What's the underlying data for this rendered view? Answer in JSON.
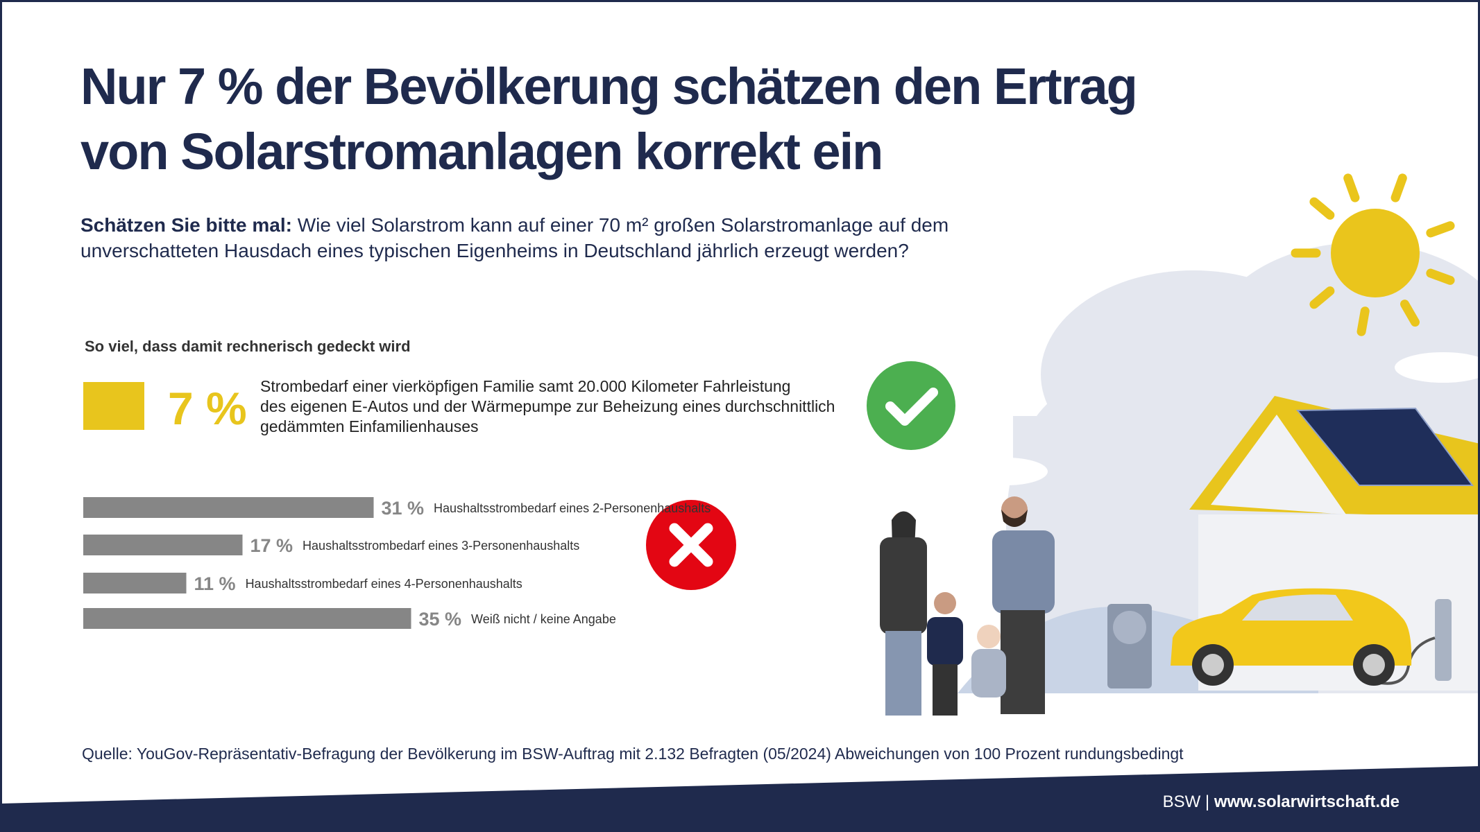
{
  "title": [
    "Nur 7 % der Bevölkerung schätzen den Ertrag",
    "von Solarstromanlagen korrekt ein"
  ],
  "question_lead": "Schätzen Sie bitte mal:",
  "question": [
    "Wie viel Solarstrom kann auf einer 70 m² großen Solarstromanlage auf dem",
    "unverschatteten Hausdach eines typischen Eigenheims in Deutschland jährlich erzeugt werden?"
  ],
  "chart_data": {
    "type": "bar",
    "section_label": "So viel, dass damit rechnerisch gedeckt wird",
    "highlight": {
      "value": 7,
      "value_label": "7 %",
      "color": "#e8c51d",
      "text": [
        "Strombedarf einer vierköpfigen Familie samt 20.000 Kilometer Fahrleistung",
        "des eigenen E-Autos und der Wärmepumpe zur Beheizung eines durchschnittlich",
        "gedämmten Einfamilienhauses"
      ]
    },
    "categories": [
      "Haushaltsstrombedarf eines 2-Personenhaushalts",
      "Haushaltsstrombedarf eines 3-Personenhaushalts",
      "Haushaltsstrombedarf eines 4-Personenhaushalts",
      "Weiß nicht / keine Angabe"
    ],
    "values": [
      31,
      17,
      11,
      35
    ],
    "value_labels": [
      "31 %",
      "17 %",
      "11 %",
      "35 %"
    ],
    "color": "#868686"
  },
  "source": "Quelle: YouGov-Repräsentativ-Befragung der Bevölkerung im BSW-Auftrag mit 2.132 Befragten (05/2024) Abweichungen von 100 Prozent rundungsbedingt",
  "footer": {
    "org": "BSW",
    "separator": "|",
    "url": "www.solarwirtschaft.de"
  }
}
